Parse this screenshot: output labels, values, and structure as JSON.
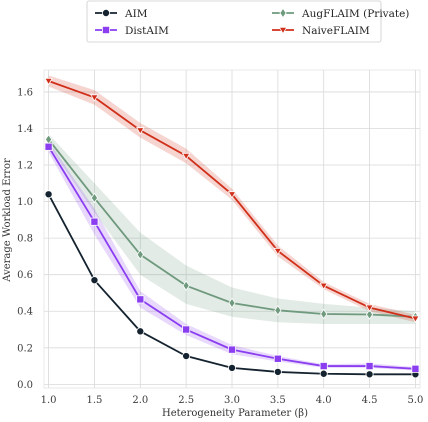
{
  "chart_data": {
    "type": "line",
    "xlabel": "Heterogeneity Parameter (β)",
    "ylabel": "Average Workload Error",
    "xlim": [
      0.95,
      5.05
    ],
    "ylim": [
      -0.02,
      1.72
    ],
    "xticks": [
      1.0,
      1.5,
      2.0,
      2.5,
      3.0,
      3.5,
      4.0,
      4.5,
      5.0
    ],
    "xtick_labels": [
      "1.0",
      "1.5",
      "2.0",
      "2.5",
      "3.0",
      "3.5",
      "4.0",
      "4.5",
      "5.0"
    ],
    "yticks": [
      0.0,
      0.2,
      0.4,
      0.6,
      0.8,
      1.0,
      1.2,
      1.4,
      1.6
    ],
    "ytick_labels": [
      "0.0",
      "0.2",
      "0.4",
      "0.6",
      "0.8",
      "1.0",
      "1.2",
      "1.4",
      "1.6"
    ],
    "grid": true,
    "legend_position": "top-center, outside plot",
    "x": [
      1.0,
      1.5,
      2.0,
      2.5,
      3.0,
      3.5,
      4.0,
      4.5,
      5.0
    ],
    "series": [
      {
        "name": "AIM",
        "color": "#14232f",
        "marker": "circle",
        "values": [
          1.04,
          0.57,
          0.29,
          0.155,
          0.09,
          0.068,
          0.058,
          0.055,
          0.055
        ],
        "lower": [
          1.04,
          0.57,
          0.29,
          0.155,
          0.09,
          0.068,
          0.058,
          0.055,
          0.055
        ],
        "upper": [
          1.04,
          0.57,
          0.29,
          0.155,
          0.09,
          0.068,
          0.058,
          0.055,
          0.055
        ]
      },
      {
        "name": "AugFLAIM (Private)",
        "color": "#6f9a7e",
        "marker": "diamond",
        "values": [
          1.34,
          1.02,
          0.71,
          0.54,
          0.445,
          0.405,
          0.385,
          0.382,
          0.37
        ],
        "lower": [
          1.31,
          0.94,
          0.6,
          0.44,
          0.37,
          0.34,
          0.33,
          0.33,
          0.33
        ],
        "upper": [
          1.37,
          1.1,
          0.83,
          0.65,
          0.53,
          0.47,
          0.44,
          0.42,
          0.4
        ]
      },
      {
        "name": "DistAIM",
        "color": "#8a3ef0",
        "marker": "square",
        "values": [
          1.3,
          0.89,
          0.465,
          0.3,
          0.19,
          0.14,
          0.1,
          0.1,
          0.085
        ],
        "lower": [
          1.27,
          0.82,
          0.42,
          0.27,
          0.165,
          0.125,
          0.09,
          0.09,
          0.075
        ],
        "upper": [
          1.33,
          0.96,
          0.51,
          0.33,
          0.215,
          0.155,
          0.11,
          0.115,
          0.095
        ]
      },
      {
        "name": "NaiveFLAIM",
        "color": "#d02f1a",
        "marker": "triangle-down",
        "values": [
          1.66,
          1.57,
          1.39,
          1.25,
          1.04,
          0.73,
          0.54,
          0.42,
          0.36
        ],
        "lower": [
          1.63,
          1.53,
          1.35,
          1.21,
          1.01,
          0.7,
          0.52,
          0.4,
          0.34
        ],
        "upper": [
          1.69,
          1.61,
          1.43,
          1.29,
          1.07,
          0.76,
          0.56,
          0.44,
          0.38
        ]
      }
    ],
    "legend_order": [
      0,
      2,
      1,
      3
    ]
  }
}
